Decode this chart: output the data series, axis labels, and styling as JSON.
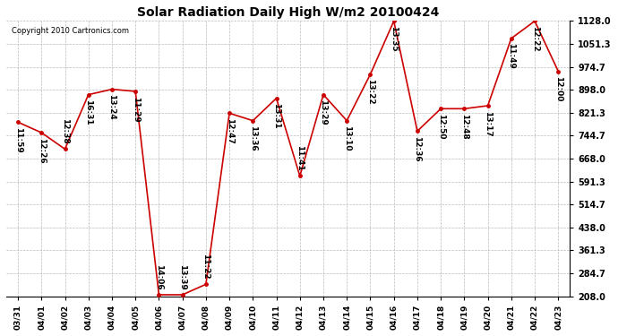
{
  "title": "Solar Radiation Daily High W/m2 20100424",
  "copyright": "Copyright 2010 Cartronics.com",
  "dates": [
    "03/31",
    "04/01",
    "04/02",
    "04/03",
    "04/04",
    "04/05",
    "04/06",
    "04/07",
    "04/08",
    "04/09",
    "04/10",
    "04/11",
    "04/12",
    "04/13",
    "04/14",
    "04/15",
    "04/16",
    "04/17",
    "04/18",
    "04/19",
    "04/20",
    "04/21",
    "04/22",
    "04/23"
  ],
  "values": [
    790,
    755,
    700,
    882,
    900,
    893,
    213,
    213,
    248,
    820,
    795,
    870,
    610,
    882,
    795,
    950,
    1128,
    760,
    835,
    835,
    845,
    1070,
    1128,
    960
  ],
  "labels": [
    "11:59",
    "12:26",
    "12:38",
    "16:31",
    "13:24",
    "11:29",
    "14:06",
    "13:39",
    "11:22",
    "12:47",
    "13:36",
    "13:31",
    "11:41",
    "13:29",
    "13:10",
    "13:22",
    "13:35",
    "12:36",
    "12:50",
    "12:48",
    "13:17",
    "11:49",
    "12:22",
    "12:00"
  ],
  "ylim_min": 208.0,
  "ylim_max": 1128.0,
  "yticks": [
    208.0,
    284.7,
    361.3,
    438.0,
    514.7,
    591.3,
    668.0,
    744.7,
    821.3,
    898.0,
    974.7,
    1051.3,
    1128.0
  ],
  "line_color": "#cc0000",
  "marker_color": "#cc0000",
  "bg_color": "#ffffff",
  "grid_color": "#bbbbbb",
  "title_fontsize": 10,
  "label_fontsize": 6.5,
  "copyright_fontsize": 6,
  "xtick_fontsize": 6.5,
  "ytick_fontsize": 7
}
